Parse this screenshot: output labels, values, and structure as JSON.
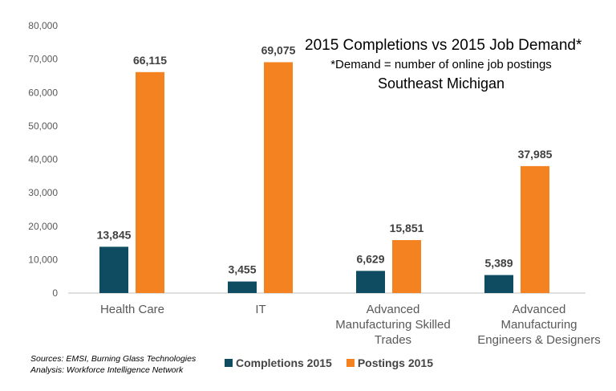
{
  "chart_data": {
    "type": "bar",
    "title": "2015 Completions vs 2015 Job Demand*",
    "subtitle": "*Demand = number of online job postings",
    "region": "Southeast Michigan",
    "categories": [
      "Health Care",
      "IT",
      "Advanced Manufacturing Skilled Trades",
      "Advanced Manufacturing Engineers & Designers"
    ],
    "category_lines": [
      [
        "Health Care"
      ],
      [
        "IT"
      ],
      [
        "Advanced",
        "Manufacturing Skilled",
        "Trades"
      ],
      [
        "Advanced",
        "Manufacturing",
        "Engineers & Designers"
      ]
    ],
    "series": [
      {
        "name": "Completions 2015",
        "color": "#0f4c62",
        "values": [
          13845,
          3455,
          6629,
          5389
        ],
        "labels": [
          "13,845",
          "3,455",
          "6,629",
          "5,389"
        ]
      },
      {
        "name": "Postings 2015",
        "color": "#f58220",
        "values": [
          66115,
          69075,
          15851,
          37985
        ],
        "labels": [
          "66,115",
          "69,075",
          "15,851",
          "37,985"
        ]
      }
    ],
    "ylim": [
      0,
      80000
    ],
    "yticks": [
      0,
      10000,
      20000,
      30000,
      40000,
      50000,
      60000,
      70000,
      80000
    ],
    "ytick_labels": [
      "0",
      "10,000",
      "20,000",
      "30,000",
      "40,000",
      "50,000",
      "60,000",
      "70,000",
      "80,000"
    ],
    "grid": false,
    "legend_position": "bottom",
    "xlabel": "",
    "ylabel": ""
  },
  "sources": [
    "Sources: EMSI, Burning Glass Technologies",
    "Analysis: Workforce Intelligence Network"
  ]
}
